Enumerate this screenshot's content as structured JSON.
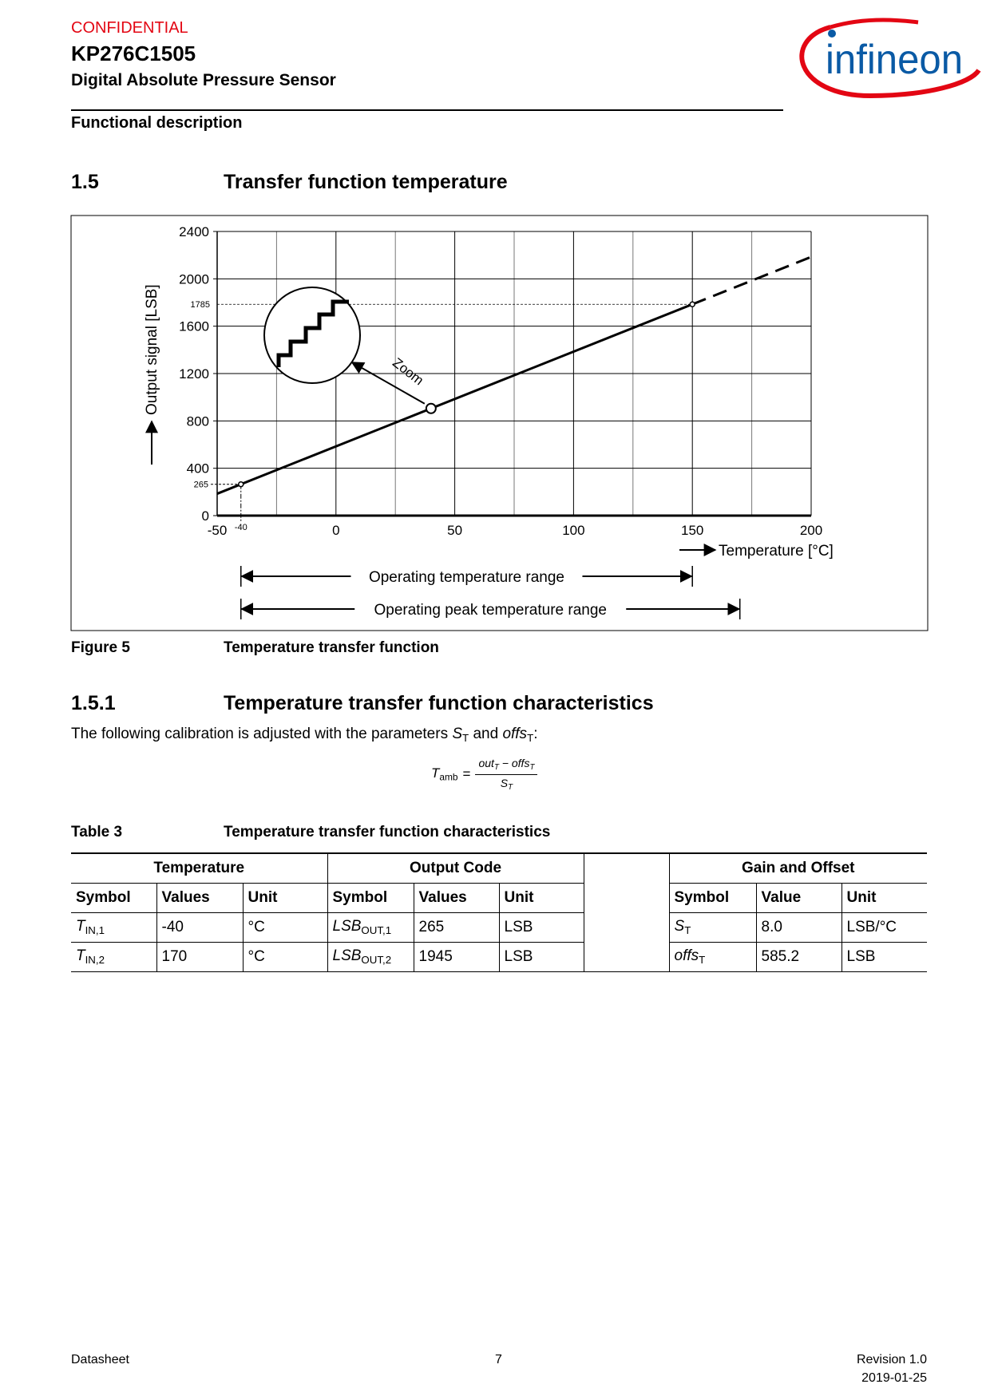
{
  "header": {
    "confidential": "CONFIDENTIAL",
    "product": "KP276C1505",
    "subtitle": "Digital Absolute Pressure Sensor",
    "section_label": "Functional description",
    "logo_text": "infineon"
  },
  "section": {
    "number": "1.5",
    "title": "Transfer function temperature"
  },
  "figure": {
    "label": "Figure 5",
    "caption": "Temperature transfer function"
  },
  "chart_data": {
    "type": "line",
    "title": "",
    "xlabel": "Temperature [°C]",
    "ylabel": "Output signal [LSB]",
    "xlim": [
      -50,
      200
    ],
    "ylim": [
      0,
      2400
    ],
    "xticks": [
      -50,
      0,
      50,
      100,
      150,
      200
    ],
    "yticks": [
      0,
      400,
      800,
      1200,
      1600,
      2000,
      2400
    ],
    "grid": true,
    "series": [
      {
        "name": "Output signal (solid)",
        "x": [
          -50,
          150
        ],
        "y": [
          185,
          1785
        ]
      },
      {
        "name": "Output signal (extrapolated, dashed)",
        "x": [
          150,
          200
        ],
        "y": [
          1785,
          2185
        ]
      }
    ],
    "marked_points": [
      {
        "x": -40,
        "y": 265,
        "xlabel": "-40",
        "ylabel": "265"
      },
      {
        "x": 150,
        "y": 1785,
        "ylabel": "1785"
      }
    ],
    "zoom_point": {
      "x": 40,
      "y": 905,
      "label": "Zoom"
    },
    "ranges": [
      {
        "label": "Operating temperature range",
        "from": -40,
        "to": 150
      },
      {
        "label": "Operating peak temperature range",
        "from": -40,
        "to": 170
      }
    ]
  },
  "subsection": {
    "number": "1.5.1",
    "title": "Temperature transfer function characteristics",
    "para_pre": "The following calibration is adjusted with the parameters ",
    "sT": "S",
    "sub_T": "T",
    "and": " and ",
    "offs": "offs",
    "colon": ":"
  },
  "formula": {
    "lhs": "T",
    "lhs_sub": "amb",
    "eq": "=",
    "num_a": "out",
    "num_b": " − offs",
    "den": "S",
    "sub": "T"
  },
  "table": {
    "label": "Table 3",
    "caption": "Temperature transfer function characteristics",
    "groups": [
      "Temperature",
      "Output Code",
      "Gain and Offset"
    ],
    "headers": [
      "Symbol",
      "Values",
      "Unit",
      "Symbol",
      "Values",
      "Unit",
      "Symbol",
      "Value",
      "Unit"
    ],
    "rows": [
      {
        "t_sym": "T",
        "t_sub": "IN,1",
        "t_val": "-40",
        "t_unit": "°C",
        "o_sym": "LSB",
        "o_sub": "OUT,1",
        "o_val": "265",
        "o_unit": "LSB",
        "g_sym": "S",
        "g_sub": "T",
        "g_val": "8.0",
        "g_unit": "LSB/°C"
      },
      {
        "t_sym": "T",
        "t_sub": "IN,2",
        "t_val": "170",
        "t_unit": "°C",
        "o_sym": "LSB",
        "o_sub": "OUT,2",
        "o_val": "1945",
        "o_unit": "LSB",
        "g_sym": "offs",
        "g_sub": "T",
        "g_val": "585.2",
        "g_unit": "LSB"
      }
    ]
  },
  "footer": {
    "left": "Datasheet",
    "page": "7",
    "revision": "Revision 1.0",
    "date": "2019-01-25"
  },
  "colors": {
    "red": "#e30613",
    "blue": "#0a5aa5"
  }
}
